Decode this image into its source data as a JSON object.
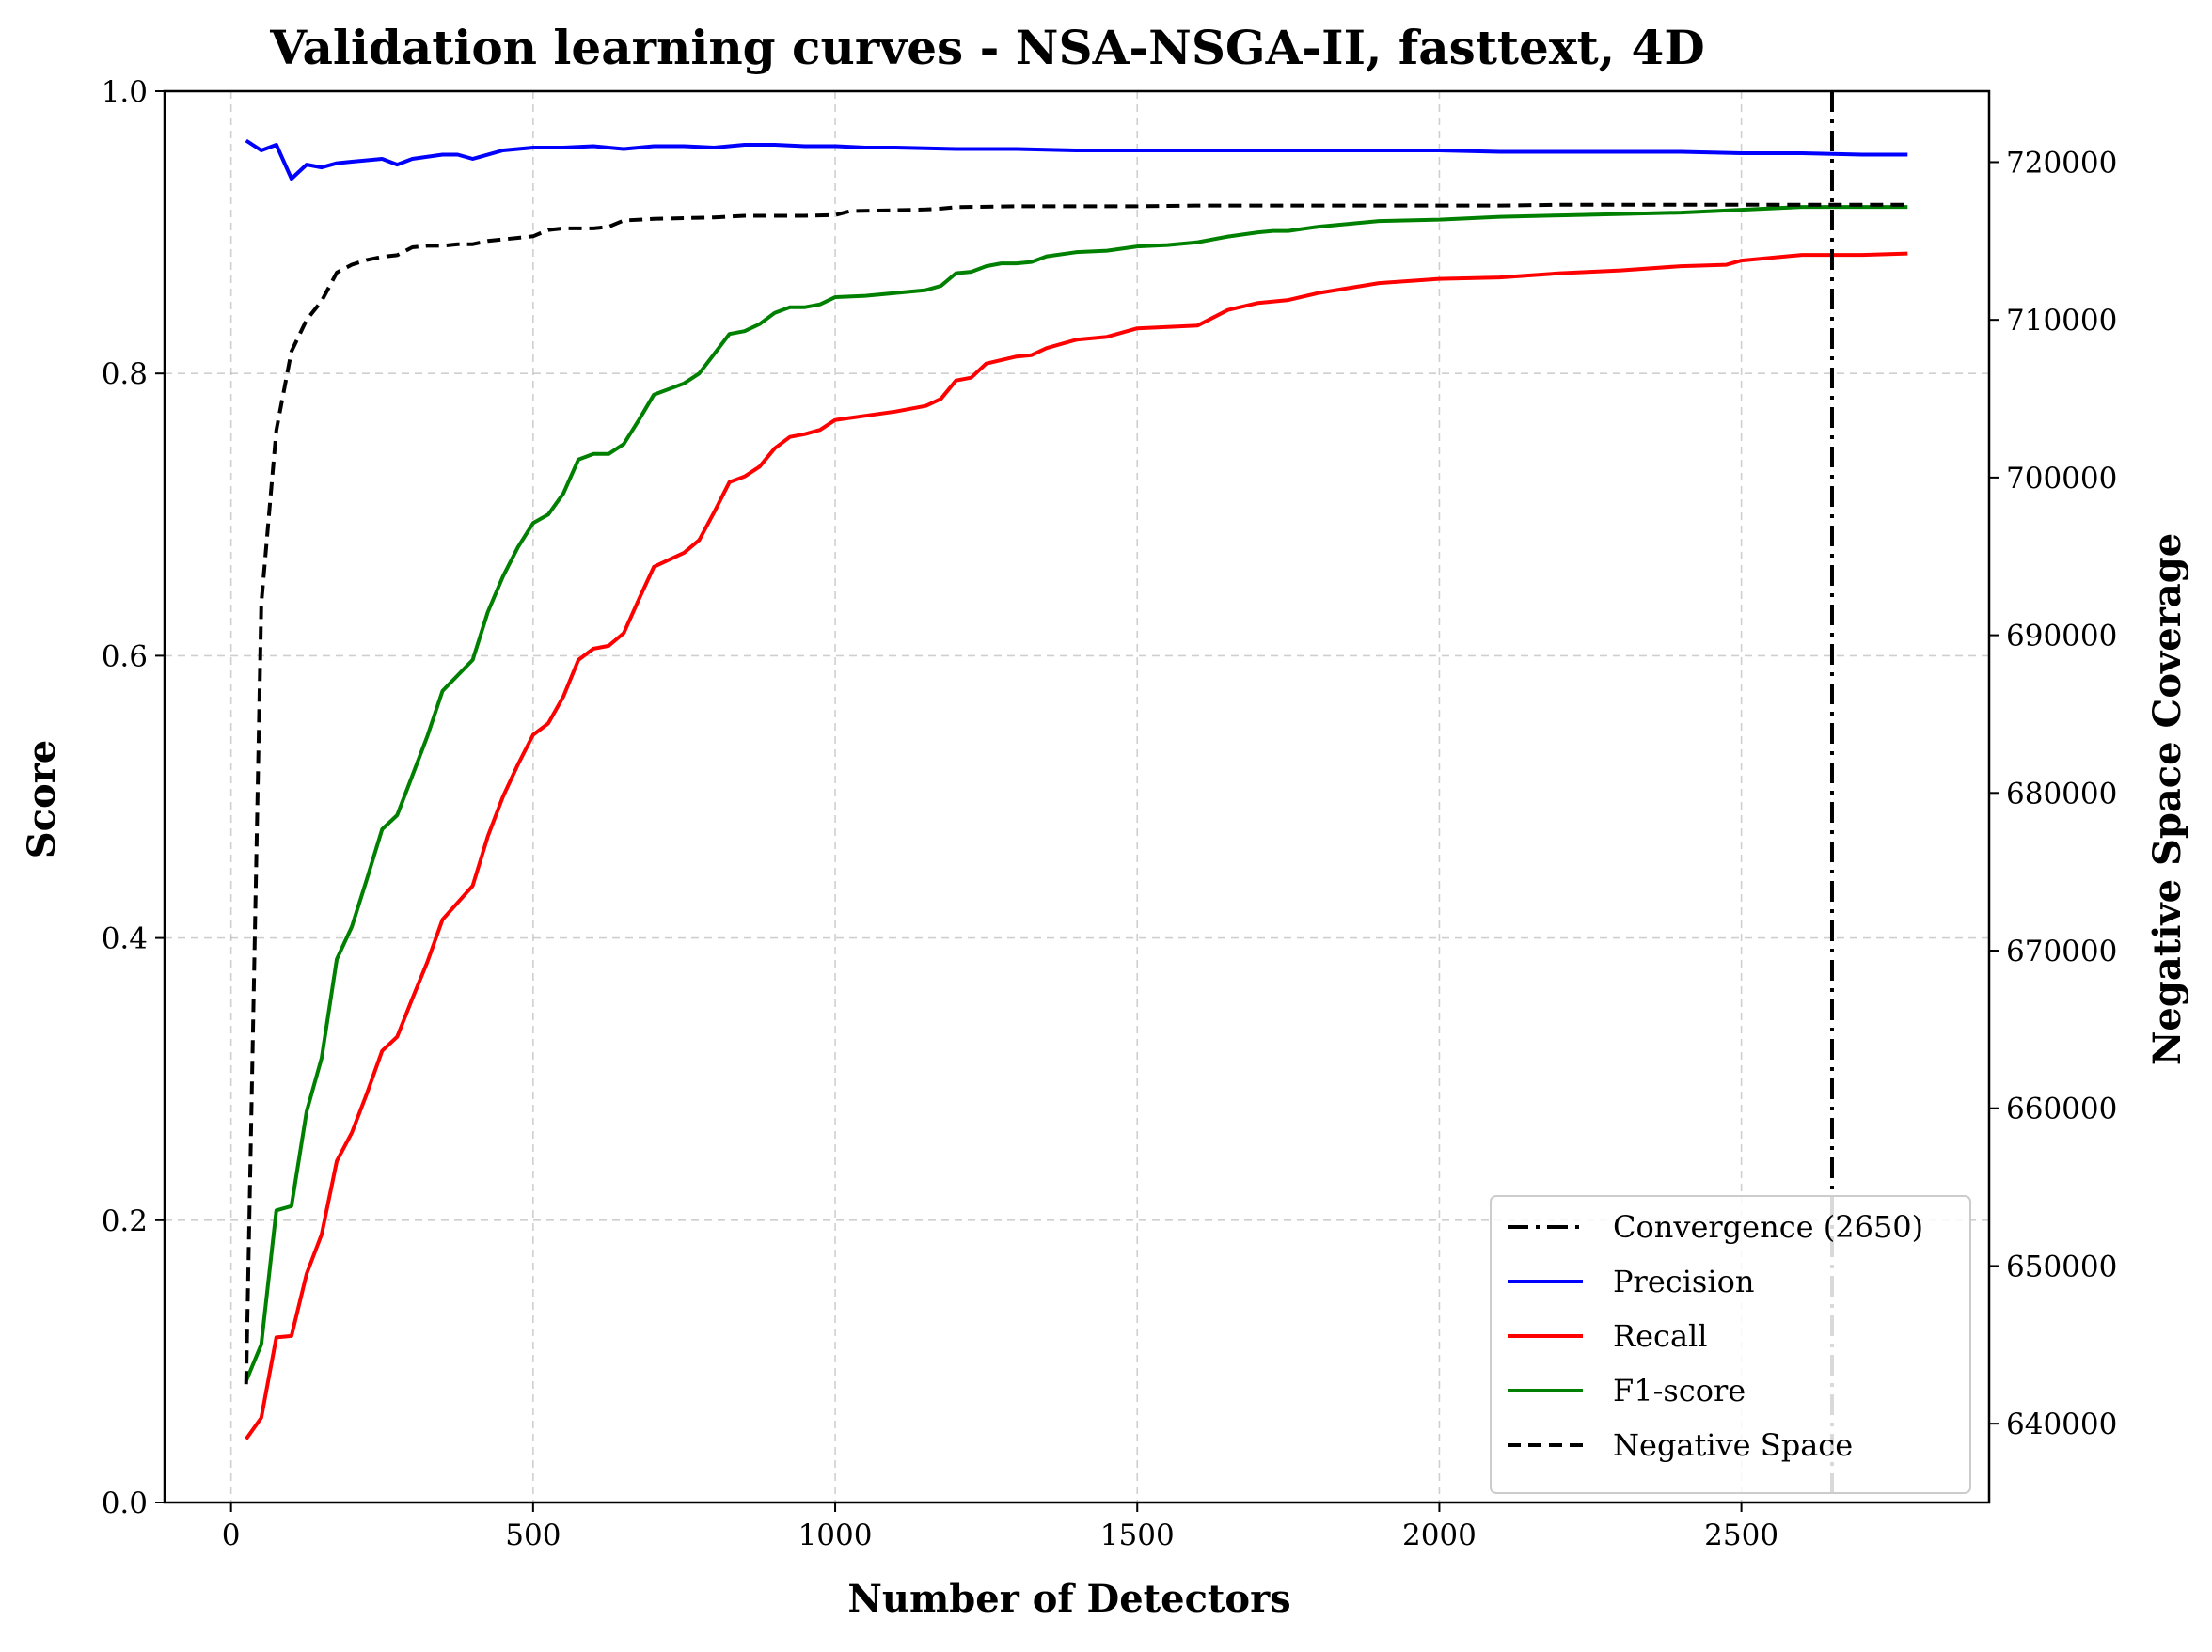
{
  "chart_data": {
    "type": "line",
    "title": "Validation learning curves - NSA-NSGA-II, fasttext, 4D",
    "xlabel": "Number of Detectors",
    "ylabel": "Score",
    "y2label": "Negative Space Coverage",
    "xlim": [
      -110,
      2910
    ],
    "ylim": [
      0.0,
      1.0
    ],
    "y2lim": [
      635000,
      724500
    ],
    "xticks": [
      0,
      500,
      1000,
      1500,
      2000,
      2500
    ],
    "xtick_labels": [
      "0",
      "500",
      "1000",
      "1500",
      "2000",
      "2500"
    ],
    "yticks": [
      0.0,
      0.2,
      0.4,
      0.6,
      0.8,
      1.0
    ],
    "ytick_labels": [
      "0.0",
      "0.2",
      "0.4",
      "0.6",
      "0.8",
      "1.0"
    ],
    "y2ticks": [
      640000,
      650000,
      660000,
      670000,
      680000,
      690000,
      700000,
      710000,
      720000
    ],
    "y2tick_labels": [
      "640000",
      "650000",
      "660000",
      "670000",
      "680000",
      "690000",
      "700000",
      "710000",
      "720000"
    ],
    "grid": true,
    "legend_position": "lower-right",
    "convergence": {
      "name": "Convergence (2650)",
      "x": 2650,
      "color": "#000000"
    },
    "series": [
      {
        "name": "Precision",
        "color": "#0000ff",
        "axis": "left",
        "x": [
          25,
          50,
          75,
          100,
          125,
          150,
          175,
          200,
          250,
          275,
          300,
          350,
          375,
          400,
          450,
          500,
          550,
          600,
          650,
          700,
          750,
          800,
          850,
          900,
          950,
          1000,
          1050,
          1100,
          1200,
          1300,
          1400,
          1500,
          1600,
          1700,
          1800,
          1900,
          2000,
          2100,
          2200,
          2300,
          2400,
          2500,
          2600,
          2700,
          2775
        ],
        "values": [
          0.965,
          0.958,
          0.962,
          0.938,
          0.948,
          0.946,
          0.949,
          0.95,
          0.952,
          0.948,
          0.952,
          0.955,
          0.955,
          0.952,
          0.958,
          0.96,
          0.96,
          0.961,
          0.959,
          0.961,
          0.961,
          0.96,
          0.962,
          0.962,
          0.961,
          0.961,
          0.96,
          0.96,
          0.959,
          0.959,
          0.958,
          0.958,
          0.958,
          0.958,
          0.958,
          0.958,
          0.958,
          0.957,
          0.957,
          0.957,
          0.957,
          0.956,
          0.956,
          0.955,
          0.955
        ]
      },
      {
        "name": "Recall",
        "color": "#ff0000",
        "axis": "left",
        "x": [
          25,
          50,
          75,
          100,
          125,
          150,
          175,
          200,
          225,
          250,
          275,
          300,
          325,
          350,
          375,
          400,
          425,
          450,
          475,
          500,
          525,
          550,
          575,
          600,
          625,
          650,
          675,
          700,
          725,
          750,
          775,
          800,
          825,
          850,
          875,
          900,
          925,
          950,
          975,
          1000,
          1050,
          1100,
          1150,
          1175,
          1200,
          1225,
          1250,
          1300,
          1325,
          1350,
          1400,
          1450,
          1500,
          1600,
          1650,
          1700,
          1750,
          1800,
          1900,
          2000,
          2100,
          2200,
          2300,
          2400,
          2475,
          2500,
          2600,
          2700,
          2775
        ],
        "values": [
          0.045,
          0.06,
          0.117,
          0.118,
          0.162,
          0.19,
          0.242,
          0.262,
          0.29,
          0.32,
          0.33,
          0.357,
          0.383,
          0.413,
          0.425,
          0.437,
          0.472,
          0.5,
          0.523,
          0.544,
          0.552,
          0.571,
          0.597,
          0.605,
          0.607,
          0.616,
          0.64,
          0.663,
          0.668,
          0.673,
          0.682,
          0.702,
          0.723,
          0.727,
          0.734,
          0.747,
          0.755,
          0.757,
          0.76,
          0.767,
          0.77,
          0.773,
          0.777,
          0.782,
          0.795,
          0.797,
          0.807,
          0.812,
          0.813,
          0.818,
          0.824,
          0.826,
          0.832,
          0.834,
          0.845,
          0.85,
          0.852,
          0.857,
          0.864,
          0.867,
          0.868,
          0.871,
          0.873,
          0.876,
          0.877,
          0.88,
          0.884,
          0.884,
          0.885
        ]
      },
      {
        "name": "F1-score",
        "color": "#008000",
        "axis": "left",
        "x": [
          25,
          50,
          75,
          100,
          125,
          150,
          175,
          200,
          225,
          250,
          275,
          300,
          325,
          350,
          375,
          400,
          425,
          450,
          475,
          500,
          525,
          550,
          575,
          600,
          625,
          650,
          675,
          700,
          725,
          750,
          775,
          800,
          825,
          850,
          875,
          900,
          925,
          950,
          975,
          1000,
          1050,
          1100,
          1150,
          1175,
          1200,
          1225,
          1250,
          1275,
          1300,
          1325,
          1350,
          1400,
          1450,
          1500,
          1550,
          1600,
          1650,
          1700,
          1725,
          1750,
          1800,
          1850,
          1900,
          2000,
          2100,
          2200,
          2300,
          2400,
          2500,
          2600,
          2700,
          2775
        ],
        "values": [
          0.086,
          0.112,
          0.207,
          0.21,
          0.277,
          0.315,
          0.385,
          0.408,
          0.442,
          0.477,
          0.487,
          0.515,
          0.543,
          0.575,
          0.586,
          0.597,
          0.631,
          0.656,
          0.677,
          0.694,
          0.7,
          0.715,
          0.739,
          0.743,
          0.743,
          0.75,
          0.767,
          0.785,
          0.789,
          0.793,
          0.8,
          0.814,
          0.828,
          0.83,
          0.835,
          0.843,
          0.847,
          0.847,
          0.849,
          0.854,
          0.855,
          0.857,
          0.859,
          0.862,
          0.871,
          0.872,
          0.876,
          0.878,
          0.878,
          0.879,
          0.883,
          0.886,
          0.887,
          0.89,
          0.891,
          0.893,
          0.897,
          0.9,
          0.901,
          0.901,
          0.904,
          0.906,
          0.908,
          0.909,
          0.911,
          0.912,
          0.913,
          0.914,
          0.916,
          0.918,
          0.918,
          0.918
        ]
      },
      {
        "name": "Negative Space",
        "color": "#000000",
        "axis": "right",
        "dashed": true,
        "x": [
          25,
          50,
          75,
          100,
          125,
          150,
          175,
          200,
          225,
          250,
          275,
          300,
          325,
          350,
          375,
          400,
          425,
          450,
          475,
          500,
          525,
          550,
          575,
          600,
          625,
          650,
          700,
          800,
          850,
          900,
          950,
          1000,
          1025,
          1100,
          1150,
          1175,
          1200,
          1300,
          1400,
          1500,
          1600,
          1700,
          1800,
          1900,
          2000,
          2100,
          2200,
          2300,
          2400,
          2500,
          2600,
          2700,
          2775
        ],
        "values": [
          642500,
          692000,
          703000,
          708000,
          710000,
          711200,
          713000,
          713500,
          713800,
          714000,
          714100,
          714600,
          714700,
          714700,
          714800,
          714800,
          715000,
          715100,
          715200,
          715300,
          715700,
          715800,
          715800,
          715800,
          715900,
          716300,
          716400,
          716500,
          716600,
          716600,
          716600,
          716650,
          716900,
          716950,
          717000,
          717050,
          717150,
          717200,
          717200,
          717200,
          717250,
          717250,
          717250,
          717250,
          717250,
          717250,
          717300,
          717300,
          717300,
          717300,
          717300,
          717300,
          717300
        ]
      }
    ]
  }
}
